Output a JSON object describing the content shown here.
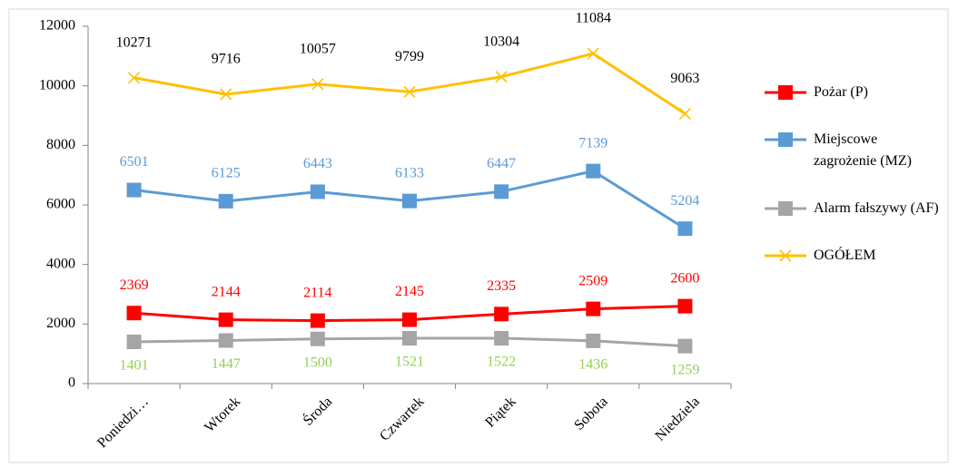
{
  "chart_data": {
    "type": "line",
    "categories": [
      "Poniedzi…",
      "Wtorek",
      "Środa",
      "Czwartek",
      "Piątek",
      "Sobota",
      "Niedziela"
    ],
    "series": [
      {
        "name": "Pożar (P)",
        "color": "#ff0000",
        "marker": "square",
        "label_color": "#ff0000",
        "label_position": "above",
        "values": [
          2369,
          2144,
          2114,
          2145,
          2335,
          2509,
          2600
        ]
      },
      {
        "name": "Miejscowe zagrożenie (MZ)",
        "color": "#5b9bd5",
        "marker": "square",
        "label_color": "#5b9bd5",
        "label_position": "above",
        "values": [
          6501,
          6125,
          6443,
          6133,
          6447,
          7139,
          5204
        ]
      },
      {
        "name": "Alarm fałszywy (AF)",
        "color": "#a5a5a5",
        "marker": "square",
        "label_color": "#92d050",
        "label_position": "below",
        "values": [
          1401,
          1447,
          1500,
          1521,
          1522,
          1436,
          1259
        ]
      },
      {
        "name": "OGÓŁEM",
        "color": "#ffc000",
        "marker": "x",
        "label_color": "#000000",
        "label_position": "high",
        "values": [
          10271,
          9716,
          10057,
          9799,
          10304,
          11084,
          9063
        ]
      }
    ],
    "ylim": [
      0,
      12000
    ],
    "yticks": [
      0,
      2000,
      4000,
      6000,
      8000,
      10000,
      12000
    ],
    "legend": "right"
  }
}
